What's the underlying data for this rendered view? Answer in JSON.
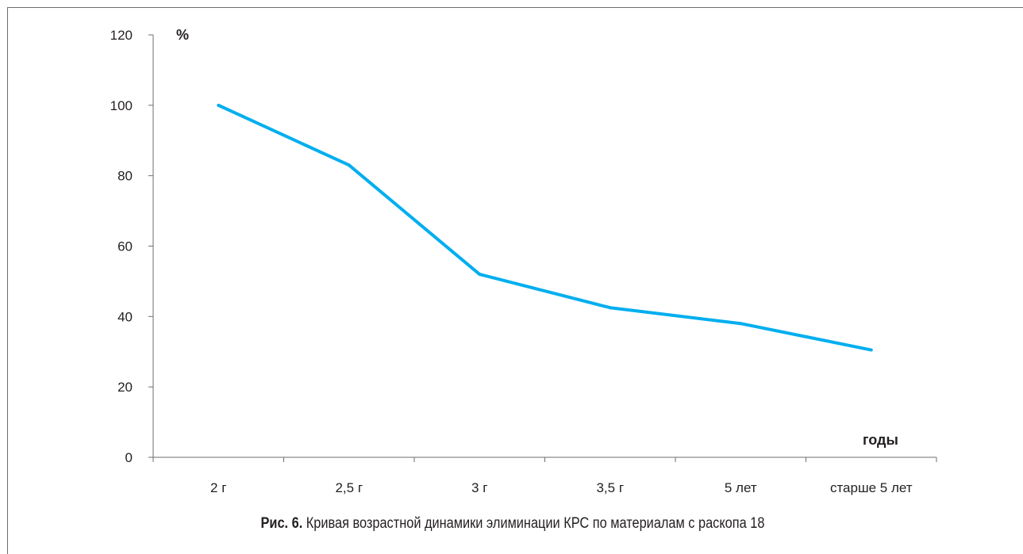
{
  "chart_data": {
    "type": "line",
    "categories": [
      "2 г",
      "2,5 г",
      "3 г",
      "3,5 г",
      "5 лет",
      "старше 5 лет"
    ],
    "series": [
      {
        "values": [
          100,
          83,
          52,
          42.5,
          38,
          30.5
        ],
        "color": "#00aeef"
      }
    ],
    "ylim": [
      0,
      120
    ],
    "yticks": [
      0,
      20,
      40,
      60,
      80,
      100,
      120
    ],
    "ylabel": "%",
    "xlabel": "годы",
    "grid": false,
    "legend": "none"
  },
  "caption": {
    "label": "Рис. 6.",
    "text": " Кривая возрастной динамики элиминации КРС по материалам с раскопа 18"
  }
}
